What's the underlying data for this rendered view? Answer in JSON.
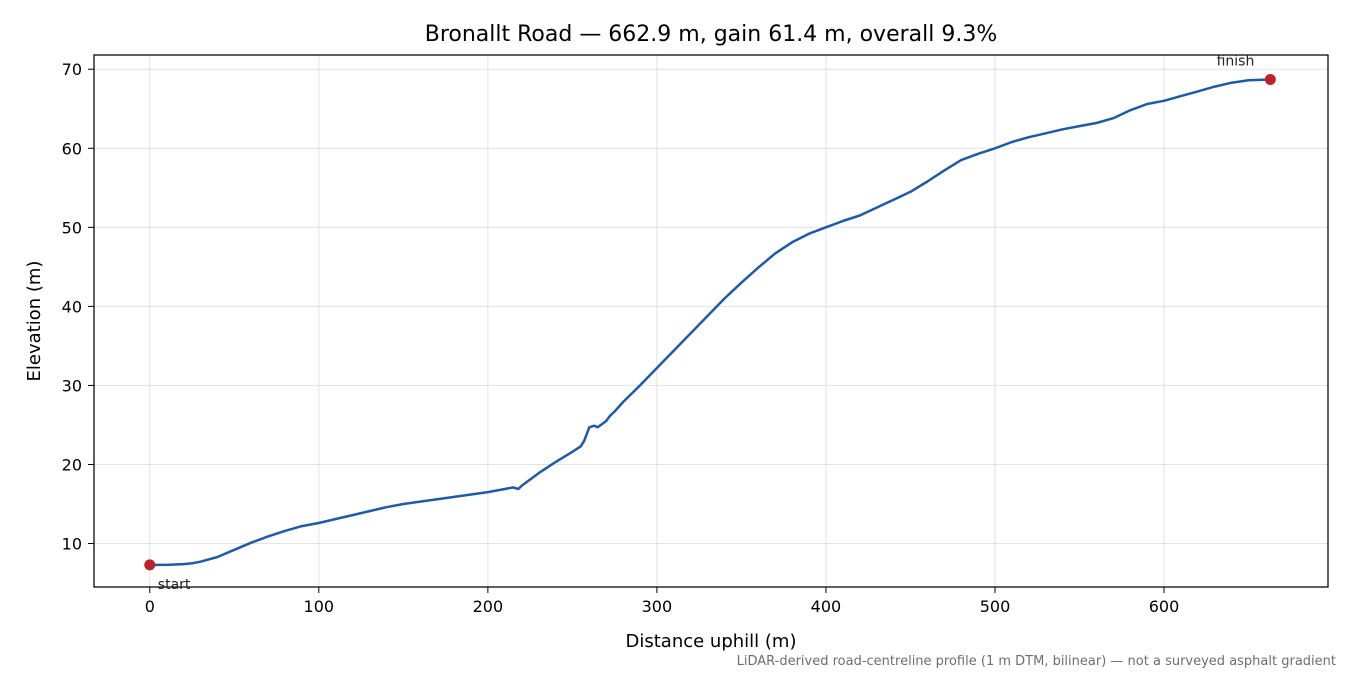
{
  "chart_data": {
    "type": "line",
    "title": "Bronallt Road — 662.9 m, gain 61.4 m, overall 9.3%",
    "xlabel": "Distance uphill (m)",
    "ylabel": "Elevation (m)",
    "xlim": [
      -33,
      697
    ],
    "ylim": [
      4.5,
      71.8
    ],
    "x_ticks": [
      0,
      100,
      200,
      300,
      400,
      500,
      600
    ],
    "y_ticks": [
      10,
      20,
      30,
      40,
      50,
      60,
      70
    ],
    "grid": true,
    "line_color": "#1f5aa6",
    "marker_color": "#c0202a",
    "series": [
      {
        "x": [
          0,
          10,
          20,
          25,
          30,
          40,
          50,
          60,
          70,
          80,
          90,
          100,
          110,
          120,
          130,
          140,
          150,
          160,
          170,
          180,
          190,
          200,
          210,
          215,
          218,
          220,
          230,
          240,
          250,
          255,
          257,
          260,
          263,
          265,
          270,
          272,
          275,
          280,
          290,
          300,
          310,
          320,
          330,
          340,
          350,
          360,
          370,
          380,
          390,
          400,
          410,
          420,
          430,
          440,
          450,
          460,
          470,
          480,
          490,
          500,
          510,
          520,
          530,
          540,
          550,
          560,
          570,
          580,
          590,
          600,
          610,
          620,
          630,
          640,
          650,
          662.9
        ],
        "y": [
          7.3,
          7.3,
          7.4,
          7.5,
          7.7,
          8.3,
          9.2,
          10.1,
          10.9,
          11.6,
          12.2,
          12.6,
          13.1,
          13.6,
          14.1,
          14.6,
          15.0,
          15.3,
          15.6,
          15.9,
          16.2,
          16.5,
          16.9,
          17.1,
          16.9,
          17.3,
          18.9,
          20.3,
          21.6,
          22.3,
          23.0,
          24.7,
          24.9,
          24.7,
          25.5,
          26.1,
          26.7,
          27.9,
          30.0,
          32.2,
          34.4,
          36.6,
          38.8,
          41.0,
          43.0,
          44.9,
          46.7,
          48.1,
          49.2,
          50.0,
          50.8,
          51.5,
          52.5,
          53.5,
          54.5,
          55.8,
          57.2,
          58.5,
          59.3,
          60.0,
          60.8,
          61.4,
          61.9,
          62.4,
          62.8,
          63.2,
          63.8,
          64.8,
          65.6,
          66.0,
          66.6,
          67.2,
          67.8,
          68.3,
          68.6,
          68.7
        ]
      }
    ],
    "annotations": [
      {
        "text": "start",
        "x": 0,
        "y": 7.3
      },
      {
        "text": "finish",
        "x": 662.9,
        "y": 68.7
      }
    ],
    "caption": "LiDAR-derived road-centreline profile (1 m DTM, bilinear) — not a surveyed asphalt gradient"
  }
}
